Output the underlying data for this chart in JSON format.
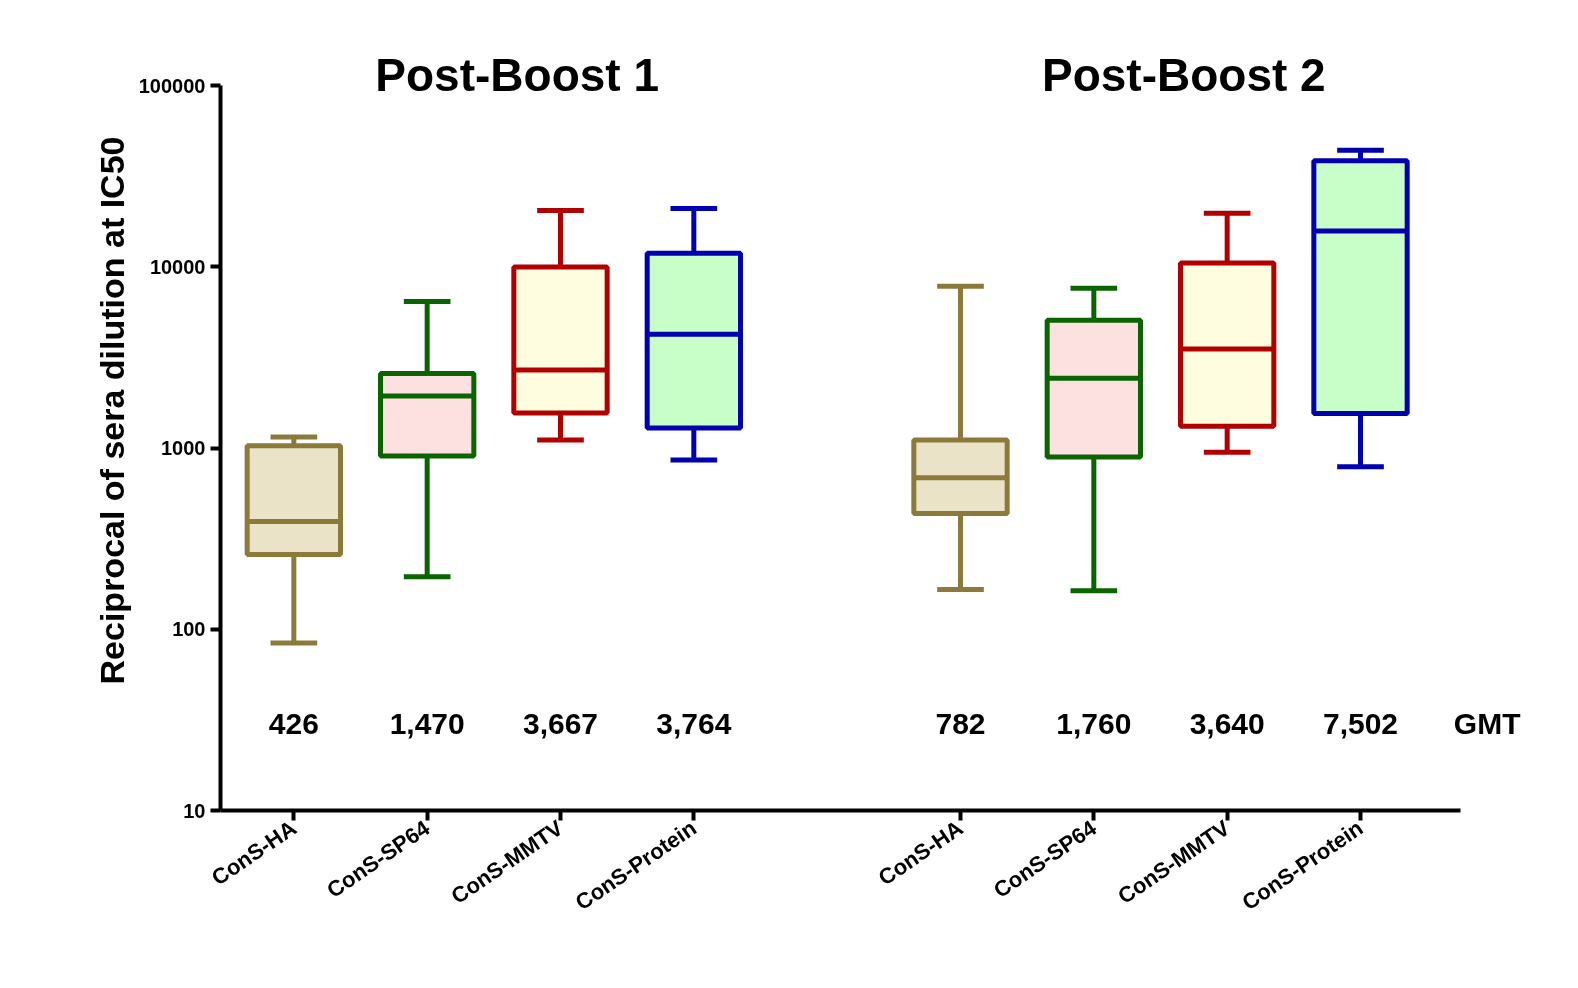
{
  "chart_data": {
    "type": "box",
    "ylabel": "Reciprocal of sera dilution at IC50",
    "log": true,
    "categories": [
      "ConS-HA",
      "ConS-SP64",
      "ConS-MMTV",
      "ConS-Protein",
      "ConS-HA",
      "ConS-SP64",
      "ConS-MMTV",
      "ConS-Protein"
    ],
    "colors": [
      "#8b7a3a",
      "#0a6400",
      "#b00000",
      "#0000b0",
      "#8b7a3a",
      "#0a6400",
      "#b00000",
      "#0000b0"
    ],
    "boxes": [
      {
        "low": 84,
        "q1": 259,
        "median": 393,
        "q3": 1030,
        "high": 1150
      },
      {
        "low": 195,
        "q1": 904,
        "median": 1940,
        "q3": 2580,
        "high": 6450
      },
      {
        "low": 1110,
        "q1": 1560,
        "median": 2700,
        "q3": 10000,
        "high": 20500
      },
      {
        "low": 860,
        "q1": 1290,
        "median": 4250,
        "q3": 11900,
        "high": 21000
      },
      {
        "low": 166,
        "q1": 436,
        "median": 687,
        "q3": 1110,
        "high": 7810
      },
      {
        "low": 163,
        "q1": 893,
        "median": 2430,
        "q3": 5080,
        "high": 7630
      },
      {
        "low": 948,
        "q1": 1320,
        "median": 3520,
        "q3": 10500,
        "high": 19800
      },
      {
        "low": 790,
        "q1": 1550,
        "median": 15800,
        "q3": 38500,
        "high": 44000
      }
    ],
    "ylim": [
      10,
      100000
    ],
    "yticks": [
      10,
      100,
      1000,
      10000,
      100000
    ],
    "grid": false,
    "annotations": [
      "426",
      "1,470",
      "3,667",
      "3,764",
      "782",
      "1,760",
      "3,640",
      "7,502",
      "GMT",
      "Post-Boost 1",
      "Post-Boost 2"
    ]
  }
}
